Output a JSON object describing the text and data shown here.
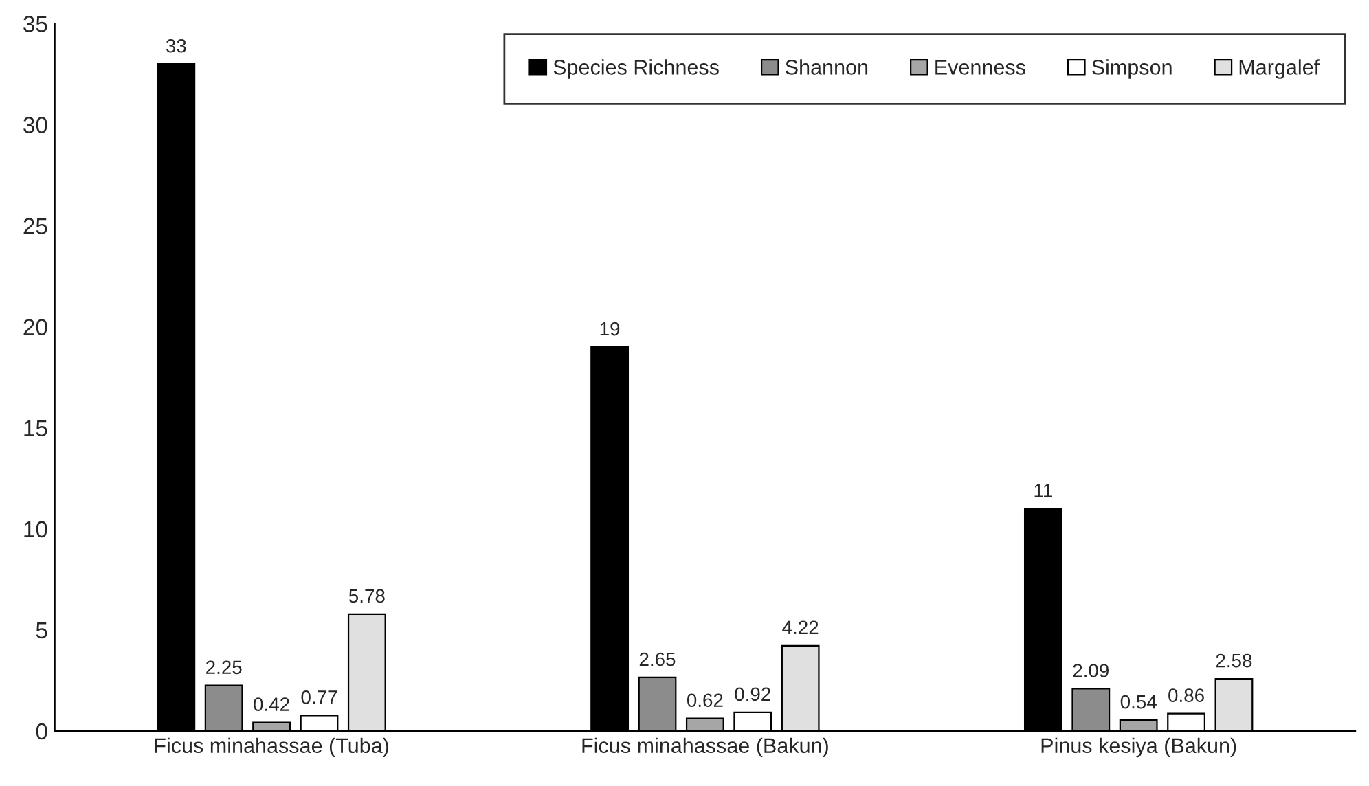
{
  "chart_data": {
    "type": "bar",
    "categories": [
      "Ficus minahassae (Tuba)",
      "Ficus minahassae (Bakun)",
      "Pinus kesiya (Bakun)"
    ],
    "series": [
      {
        "name": "Species Richness",
        "color": "#000000",
        "values": [
          33,
          19,
          11
        ]
      },
      {
        "name": "Shannon",
        "color": "#8c8c8c",
        "values": [
          2.25,
          2.65,
          2.09
        ]
      },
      {
        "name": "Evenness",
        "color": "#a6a6a6",
        "values": [
          0.42,
          0.62,
          0.54
        ]
      },
      {
        "name": "Simpson",
        "color": "#ffffff",
        "values": [
          0.77,
          0.92,
          0.86
        ]
      },
      {
        "name": "Margalef",
        "color": "#e0e0e0",
        "values": [
          5.78,
          4.22,
          2.58
        ]
      }
    ],
    "ylim": [
      0,
      35
    ],
    "yticks": [
      0,
      5,
      10,
      15,
      20,
      25,
      30,
      35
    ],
    "data_labels": true,
    "grid": false,
    "legend": "top right"
  }
}
